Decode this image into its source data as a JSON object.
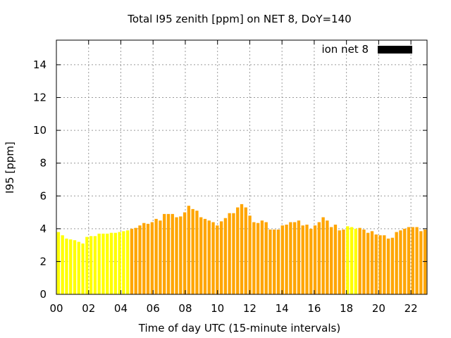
{
  "chart_data": {
    "type": "bar",
    "title": "Total I95 zenith [ppm] on NET 8, DoY=140",
    "xlabel": "Time of day UTC (15-minute intervals)",
    "ylabel": "I95 [ppm]",
    "xlim": [
      0,
      23
    ],
    "ylim": [
      0,
      15.5
    ],
    "xticks": [
      "00",
      "02",
      "04",
      "06",
      "08",
      "10",
      "12",
      "14",
      "16",
      "18",
      "20",
      "22"
    ],
    "yticks": [
      "0",
      "2",
      "4",
      "6",
      "8",
      "10",
      "12",
      "14"
    ],
    "grid": true,
    "legend_position": "top-right",
    "series": [
      {
        "name": "ion net 8",
        "legend_color": "#000000",
        "values": [
          3.8,
          3.6,
          3.4,
          3.35,
          3.3,
          3.2,
          3.1,
          3.5,
          3.55,
          3.55,
          3.7,
          3.7,
          3.7,
          3.75,
          3.75,
          3.8,
          3.85,
          3.9,
          4.0,
          4.05,
          4.2,
          4.35,
          4.3,
          4.4,
          4.6,
          4.5,
          4.9,
          4.9,
          4.9,
          4.7,
          4.75,
          5.0,
          5.4,
          5.2,
          5.1,
          4.7,
          4.6,
          4.5,
          4.4,
          4.2,
          4.45,
          4.65,
          4.95,
          4.95,
          5.3,
          5.5,
          5.3,
          4.8,
          4.4,
          4.35,
          4.5,
          4.4,
          3.95,
          3.95,
          3.95,
          4.2,
          4.25,
          4.4,
          4.4,
          4.5,
          4.2,
          4.25,
          4.0,
          4.2,
          4.4,
          4.7,
          4.5,
          4.1,
          4.25,
          3.9,
          3.95,
          4.15,
          4.1,
          4.0,
          4.05,
          3.95,
          3.75,
          3.85,
          3.65,
          3.6,
          3.6,
          3.4,
          3.45,
          3.8,
          3.9,
          4.0,
          4.1,
          4.1,
          4.1,
          3.85,
          3.95
        ]
      }
    ],
    "colors": {
      "bar_high": "#FFA500",
      "bar_low": "#FFFF00"
    },
    "bar_color_classes": "yyyyyyyyyyyyyyyyyyoooooooooooooooooooooooooooooooooooooooooooooooooooooyyyoooooooooooooooooooooooyyoooooyyyyyyyyyyyyyyy"
  }
}
